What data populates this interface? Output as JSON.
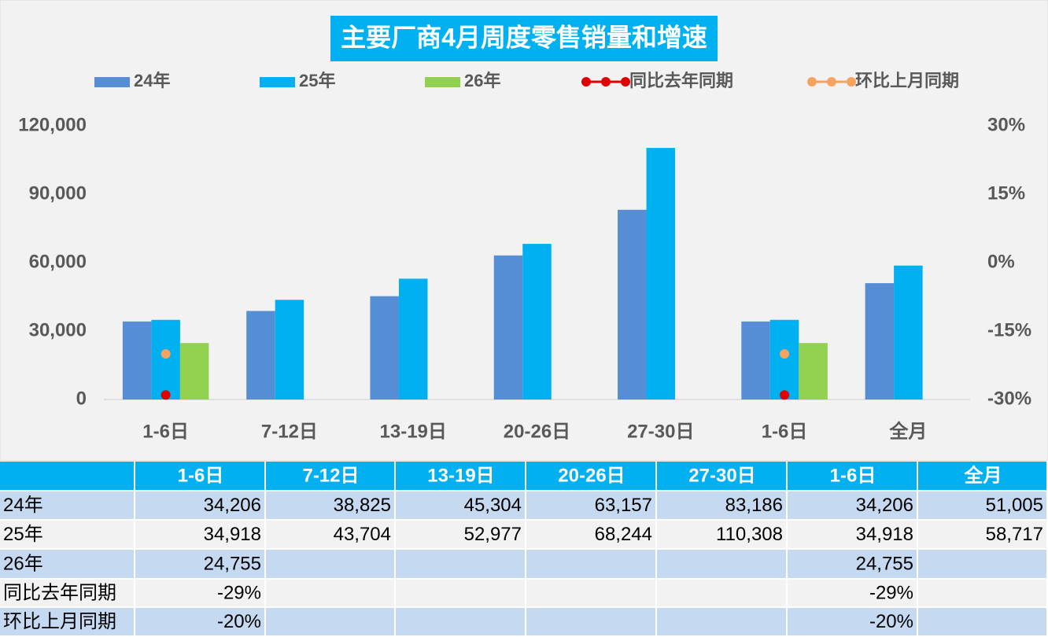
{
  "chart_data": {
    "type": "bar",
    "title": "主要厂商4月周度零售销量和增速",
    "categories": [
      "1-6日",
      "7-12日",
      "13-19日",
      "20-26日",
      "27-30日",
      "1-6日",
      "全月"
    ],
    "series": [
      {
        "name": "24年",
        "color": "#558ED5",
        "values": [
          34206,
          38825,
          45304,
          63157,
          83186,
          34206,
          51005
        ],
        "value_labels": [
          "34,206",
          "38,825",
          "45,304",
          "63,157",
          "83,186",
          "34,206",
          "51,005"
        ]
      },
      {
        "name": "25年",
        "color": "#00B0F0",
        "values": [
          34918,
          43704,
          52977,
          68244,
          110308,
          34918,
          58717
        ],
        "value_labels": [
          "34,918",
          "43,704",
          "52,977",
          "68,244",
          "110,308",
          "34,918",
          "58,717"
        ]
      },
      {
        "name": "26年",
        "color": "#92D050",
        "values": [
          24755,
          null,
          null,
          null,
          null,
          24755,
          null
        ],
        "value_labels": [
          "24,755",
          null,
          null,
          null,
          null,
          "24,755",
          null
        ]
      },
      {
        "name": "同比去年同期",
        "type": "line",
        "axis": "y2",
        "color": "#E00000",
        "values": [
          -29,
          null,
          null,
          null,
          null,
          -29,
          null
        ],
        "value_labels": [
          "-29%",
          null,
          null,
          null,
          null,
          "-29%",
          null
        ]
      },
      {
        "name": "环比上月同期",
        "type": "line",
        "axis": "y2",
        "color": "#F4A460",
        "values": [
          -20,
          null,
          null,
          null,
          null,
          -20,
          null
        ],
        "value_labels": [
          "-20%",
          null,
          null,
          null,
          null,
          "-20%",
          null
        ]
      }
    ],
    "ylim": [
      0,
      120000
    ],
    "yticks": [
      0,
      {
        "value": 30000,
        "label": "30,000"
      },
      {
        "value": 60000,
        "label": "60,000"
      },
      {
        "value": 90000,
        "label": "90,000"
      },
      {
        "value": 120000,
        "label": "120,000"
      }
    ],
    "y2lim": [
      -30,
      30
    ],
    "y2ticks": [
      {
        "value": -30,
        "label": "-30%"
      },
      {
        "value": -15,
        "label": "-15%"
      },
      {
        "value": 0,
        "label": "0%"
      },
      {
        "value": 15,
        "label": "15%"
      },
      {
        "value": 30,
        "label": "30%"
      }
    ],
    "legend": "top"
  }
}
